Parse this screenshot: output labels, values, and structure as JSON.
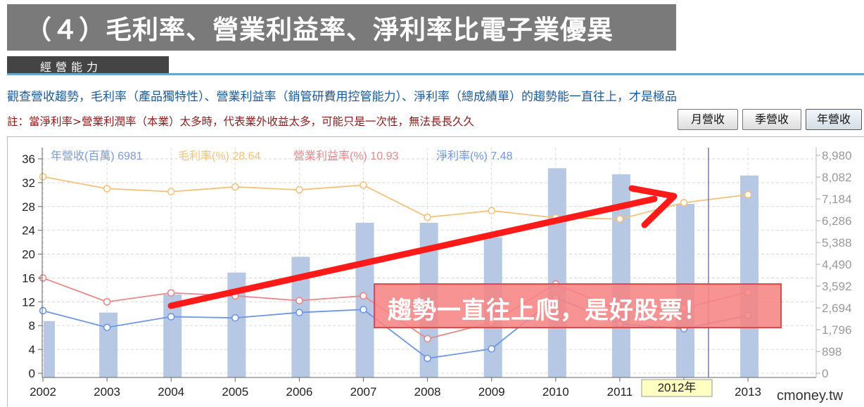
{
  "page_title": "（４）毛利率、營業利益率、淨利率比電子業優異",
  "section_tab": "經營能力",
  "description": "觀查營收趨勢，毛利率（產品獨特性）、營業利益率（銷管研費用控管能力）、淨利率（總成績單）的趨勢能一直往上，才是極品",
  "note": "註：當淨利率>營業利潤率（本業）太多時，代表業外收益太多，可能只是一次性，無法長長久久",
  "buttons": {
    "monthly": "月營收",
    "quarterly": "季營收",
    "yearly": "年營收"
  },
  "callout": "趨勢一直往上爬，是好股票！",
  "watermark": "cmoney.tw",
  "colors": {
    "revenue": "#7f9ccf",
    "gross": "#f5c27a",
    "operating": "#e8888a",
    "net": "#6f97e3",
    "bar": "#b6c8e3",
    "arrow": "#ff1a1a"
  },
  "chart_data": {
    "type": "bar",
    "categories": [
      "2002",
      "2003",
      "2004",
      "2005",
      "2006",
      "2007",
      "2008",
      "2009",
      "2010",
      "2011",
      "2012",
      "2013"
    ],
    "highlight_label": "2012年",
    "left_axis": {
      "ticks": [
        0,
        4,
        8,
        12,
        16,
        20,
        24,
        28,
        32,
        36
      ],
      "range": [
        0,
        36
      ]
    },
    "right_axis": {
      "ticks": [
        "0",
        "898",
        "1,796",
        "2,694",
        "3,592",
        "4,490",
        "5,388",
        "6,286",
        "7,184",
        "8,082",
        "8,980"
      ],
      "range": [
        0,
        8980
      ]
    },
    "legend": [
      {
        "label": "年營收(百萬) 6981",
        "color": "#7f9ccf"
      },
      {
        "label": "毛利率(%) 28.64",
        "color": "#f5c27a"
      },
      {
        "label": "營業利益率(%) 10.93",
        "color": "#e8888a"
      },
      {
        "label": "淨利率(%) 7.48",
        "color": "#6f97e3"
      }
    ],
    "series": [
      {
        "name": "年營收(百萬)",
        "kind": "bar",
        "axis": "right",
        "values": [
          2150,
          2500,
          3250,
          4150,
          4800,
          6200,
          6200,
          5600,
          8450,
          8200,
          6981,
          8150
        ]
      },
      {
        "name": "毛利率(%)",
        "kind": "line",
        "axis": "left",
        "values": [
          33.0,
          31.0,
          30.5,
          31.3,
          30.8,
          31.6,
          26.2,
          27.3,
          26.1,
          25.9,
          28.64,
          30.0
        ]
      },
      {
        "name": "營業利益率(%)",
        "kind": "line",
        "axis": "left",
        "values": [
          16.0,
          12.0,
          13.5,
          13.0,
          12.2,
          13.0,
          5.8,
          8.5,
          15.0,
          10.6,
          10.93,
          13.6
        ]
      },
      {
        "name": "淨利率(%)",
        "kind": "line",
        "axis": "left",
        "values": [
          10.5,
          7.7,
          9.5,
          9.3,
          10.2,
          10.7,
          2.5,
          4.1,
          12.7,
          8.3,
          7.48,
          9.7
        ]
      }
    ]
  }
}
